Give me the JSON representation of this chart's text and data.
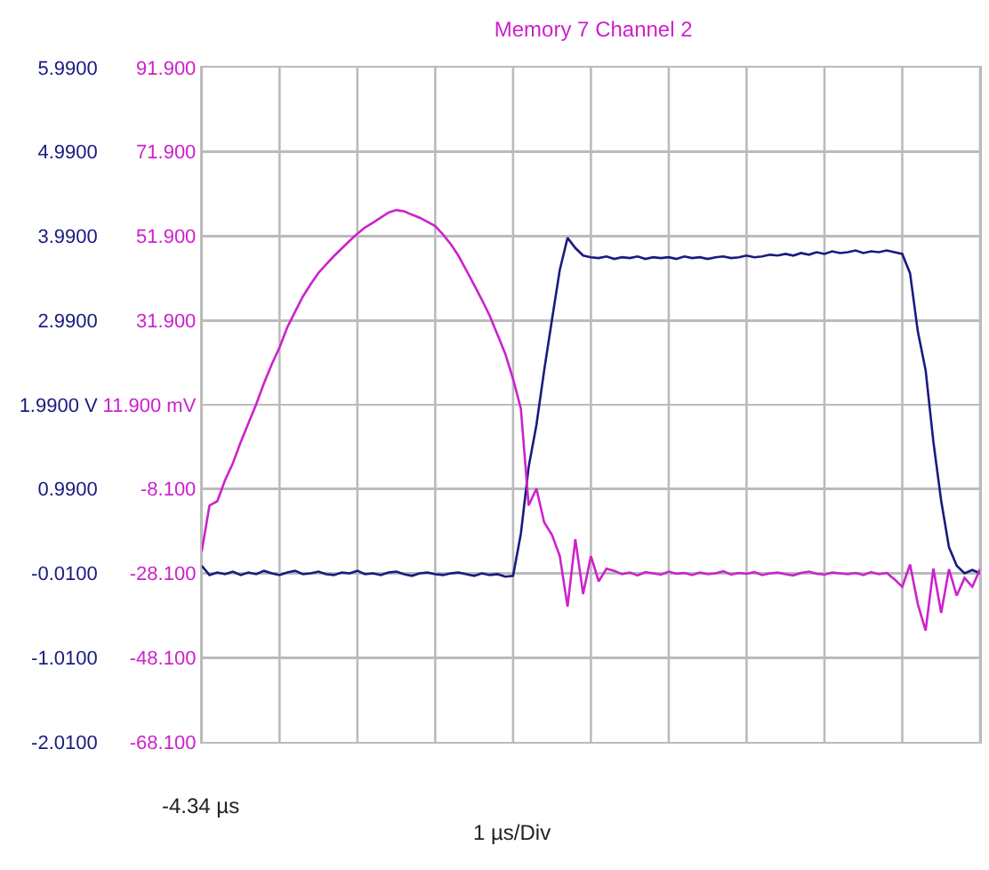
{
  "chart_data": {
    "type": "line",
    "title": "Memory 7 Channel 2",
    "annotations": [
      "-4.34 µs",
      "1 µs/Div"
    ],
    "categories": [
      null,
      null,
      null,
      null,
      null,
      null,
      null,
      null,
      null,
      null,
      null,
      null,
      null,
      null,
      null,
      null,
      null,
      null,
      null,
      null,
      null,
      null,
      null,
      null,
      null,
      null,
      null,
      null,
      null,
      null,
      null,
      null,
      null,
      null,
      null,
      null,
      null,
      null,
      null,
      null,
      null,
      null,
      null,
      null,
      null,
      null,
      null,
      null,
      null,
      null,
      null,
      null,
      null,
      null,
      null,
      null,
      null,
      null,
      null,
      null,
      null,
      null,
      null,
      null,
      null,
      null,
      null,
      null,
      null,
      null,
      null,
      null,
      null,
      null,
      null,
      null,
      null,
      null,
      null,
      null,
      null,
      null,
      null,
      null,
      null,
      null,
      null,
      null,
      null,
      null,
      null,
      null,
      null,
      null,
      null,
      null,
      null,
      null,
      null,
      null,
      null
    ],
    "ylim": [
      -2.01,
      5.99
    ],
    "yticks": [
      {
        "value": -2.01,
        "label": "-2.0100"
      },
      {
        "value": -1.01,
        "label": "-1.0100"
      },
      {
        "value": -0.01,
        "label": "-0.0100"
      },
      {
        "value": 0.99,
        "label": "0.9900"
      },
      {
        "value": 1.99,
        "label": "1.9900 V"
      },
      {
        "value": 2.99,
        "label": "2.9900"
      },
      {
        "value": 3.99,
        "label": "3.9900"
      },
      {
        "value": 4.99,
        "label": "4.9900"
      },
      {
        "value": 5.99,
        "label": "5.9900"
      }
    ],
    "y2lim": [
      -68.1,
      91.9
    ],
    "y2ticks": [
      {
        "value": -68.1,
        "label": "-68.100"
      },
      {
        "value": -48.1,
        "label": "-48.100"
      },
      {
        "value": -28.1,
        "label": "-28.100"
      },
      {
        "value": -8.1,
        "label": "-8.100"
      },
      {
        "value": 11.9,
        "label": "11.900 mV"
      },
      {
        "value": 31.9,
        "label": "31.900"
      },
      {
        "value": 51.9,
        "label": "51.900"
      },
      {
        "value": 71.9,
        "label": "71.900"
      },
      {
        "value": 91.9,
        "label": "91.900"
      }
    ],
    "grid": true,
    "series": [
      {
        "color": "#1a1a80",
        "values": [
          0.08,
          -0.03,
          0.0,
          -0.02,
          0.01,
          -0.03,
          0.0,
          -0.02,
          0.02,
          -0.01,
          -0.03,
          0.0,
          0.02,
          -0.02,
          -0.01,
          0.01,
          -0.02,
          -0.03,
          0.0,
          -0.01,
          0.02,
          -0.02,
          -0.01,
          -0.03,
          0.0,
          0.01,
          -0.02,
          -0.04,
          -0.01,
          0.0,
          -0.02,
          -0.03,
          -0.01,
          0.0,
          -0.02,
          -0.04,
          -0.01,
          -0.03,
          -0.02,
          -0.05,
          -0.04,
          0.46,
          1.25,
          1.75,
          2.4,
          3.0,
          3.59,
          3.97,
          3.85,
          3.76,
          3.74,
          3.73,
          3.75,
          3.72,
          3.74,
          3.73,
          3.75,
          3.72,
          3.74,
          3.73,
          3.74,
          3.72,
          3.75,
          3.73,
          3.74,
          3.72,
          3.74,
          3.75,
          3.73,
          3.74,
          3.76,
          3.74,
          3.75,
          3.77,
          3.76,
          3.78,
          3.76,
          3.79,
          3.77,
          3.8,
          3.78,
          3.81,
          3.79,
          3.8,
          3.82,
          3.79,
          3.81,
          3.8,
          3.82,
          3.8,
          3.78,
          3.55,
          2.86,
          2.4,
          1.55,
          0.85,
          0.3,
          0.08,
          -0.01,
          0.03,
          -0.01
        ]
      },
      {
        "color": "#cc22cc",
        "axis": "y2",
        "values": [
          -22.9,
          -12.0,
          -11.0,
          -6.0,
          -2.0,
          3.0,
          7.5,
          12.0,
          17.0,
          21.5,
          25.5,
          30.3,
          34.0,
          37.6,
          40.5,
          43.2,
          45.2,
          47.2,
          49.0,
          50.8,
          52.5,
          54.0,
          55.1,
          56.3,
          57.5,
          58.1,
          57.8,
          57.0,
          56.3,
          55.3,
          54.3,
          52.3,
          50.0,
          47.2,
          43.8,
          40.3,
          36.8,
          33.0,
          28.5,
          24.0,
          18.0,
          11.0,
          -12.0,
          -8.0,
          -16.0,
          -19.0,
          -24.0,
          -36.0,
          -20.0,
          -33.0,
          -24.0,
          -30.0,
          -27.0,
          -27.5,
          -28.3,
          -27.9,
          -28.6,
          -27.8,
          -28.1,
          -28.4,
          -27.7,
          -28.2,
          -28.0,
          -28.5,
          -27.9,
          -28.3,
          -28.1,
          -27.6,
          -28.4,
          -28.0,
          -28.2,
          -27.8,
          -28.5,
          -28.1,
          -27.9,
          -28.3,
          -28.6,
          -28.0,
          -27.7,
          -28.2,
          -28.4,
          -27.9,
          -28.1,
          -28.3,
          -28.0,
          -28.5,
          -27.8,
          -28.3,
          -28.0,
          -29.5,
          -31.3,
          -26.0,
          -35.4,
          -41.7,
          -27.0,
          -37.5,
          -27.1,
          -33.4,
          -29.2,
          -31.3,
          -27.1
        ]
      }
    ]
  }
}
